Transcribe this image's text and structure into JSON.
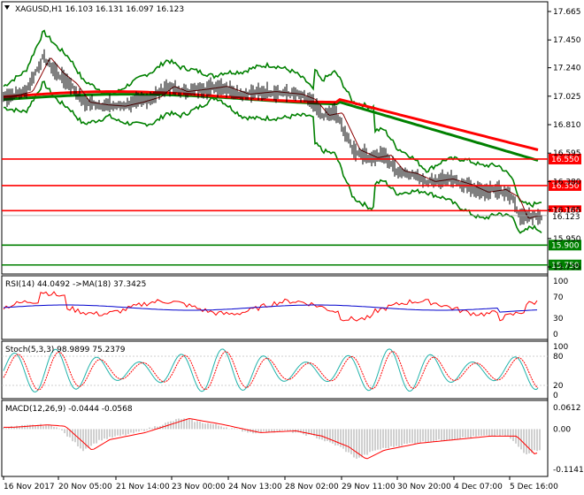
{
  "main_chart": {
    "symbol_header": "XAGUSD,H1  16.103 16.131 16.097 16.123",
    "price_scale": [
      "17.665",
      "17.450",
      "17.240",
      "17.025",
      "16.810",
      "16.595",
      "16.380",
      "16.165",
      "15.950",
      "15.735"
    ],
    "levels": [
      {
        "label": "16.550",
        "value": 16.55,
        "color": "#ff0000"
      },
      {
        "label": "16.350",
        "value": 16.35,
        "color": "#ff0000"
      },
      {
        "label": "16.160",
        "value": 16.16,
        "color": "#ff0000"
      },
      {
        "label": "15.900",
        "value": 15.9,
        "color": "#008000"
      },
      {
        "label": "15.750",
        "value": 15.75,
        "color": "#008000"
      }
    ],
    "current_price_label": "16.123",
    "current_price": 16.123,
    "colors": {
      "price": "#000000",
      "bollinger": "#008000",
      "ma_slow_red": "#ff0000",
      "ma_slow_green": "#008000",
      "ma_fast": "#8b0000"
    }
  },
  "rsi_panel": {
    "header": "RSI(14) 44.0492  ->MA(18) 37.3425",
    "scale": [
      "100",
      "70",
      "30",
      "0"
    ],
    "colors": {
      "rsi": "#ff0000",
      "ma": "#0000cd"
    }
  },
  "stoch_panel": {
    "header": "Stoch(5,3,3) 98.9899 75.2379",
    "scale": [
      "100",
      "80",
      "20",
      "0"
    ],
    "colors": {
      "main": "#20b2aa",
      "signal": "#ff0000"
    }
  },
  "macd_panel": {
    "header": "MACD(12,26,9) -0.0444 -0.0568",
    "scale": [
      "0.0612",
      "0.00",
      "-0.1141"
    ],
    "colors": {
      "histogram": "#c0c0c0",
      "signal": "#ff0000"
    }
  },
  "time_axis": [
    "16 Nov 2017",
    "20 Nov 05:00",
    "21 Nov 14:00",
    "23 Nov 00:00",
    "24 Nov 13:00",
    "28 Nov 02:00",
    "29 Nov 11:00",
    "30 Nov 20:00",
    "4 Dec 07:00",
    "5 Dec 16:00"
  ],
  "icons": {
    "menu": "triangle-down-icon"
  }
}
